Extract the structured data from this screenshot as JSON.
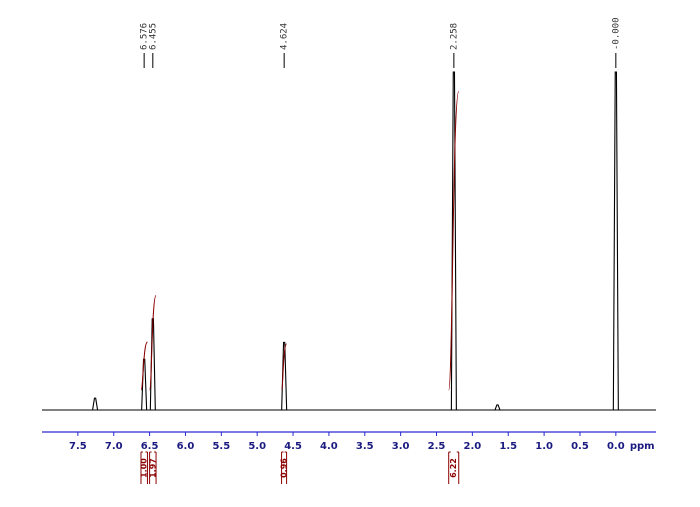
{
  "chart_data": {
    "type": "nmr",
    "x": [
      7.26,
      6.576,
      6.455,
      4.624,
      2.258,
      1.65,
      0.0
    ],
    "values": [
      3.5,
      15,
      27,
      20,
      100,
      1.5,
      100
    ],
    "color": "#000000",
    "xlim": [
      8.0,
      -0.56
    ],
    "ylim": [
      0,
      100
    ],
    "xticks": [
      7.5,
      {
        "value": 7.0,
        "label": "7.0"
      },
      6.5,
      {
        "value": 6.0,
        "label": "6.0"
      },
      5.5,
      {
        "value": 5.0,
        "label": "5.0"
      },
      4.5,
      {
        "value": 4.0,
        "label": "4.0"
      },
      3.5,
      {
        "value": 3.0,
        "label": "3.0"
      },
      2.5,
      {
        "value": 2.0,
        "label": "2.0"
      },
      1.5,
      {
        "value": 1.0,
        "label": "1.0"
      },
      0.5,
      {
        "value": 0.0,
        "label": "0.0"
      }
    ],
    "xlabel": "ppm",
    "axis_color": "#2a2ad0",
    "peak_labels": [
      6.576,
      6.455,
      4.624,
      2.258,
      {
        "value": 0,
        "label": "-0.000"
      }
    ],
    "integrals": {
      "color": "#8b0000",
      "ranges": [
        [
          6.62,
          6.53
        ],
        [
          6.5,
          6.41
        ],
        [
          4.66,
          4.59
        ],
        [
          2.33,
          2.19
        ]
      ],
      "values": [
        1.0,
        1.97,
        0.96,
        6.22
      ],
      "value_labels": [
        "1.00",
        "1.97",
        "0.96",
        "6.22"
      ]
    }
  }
}
